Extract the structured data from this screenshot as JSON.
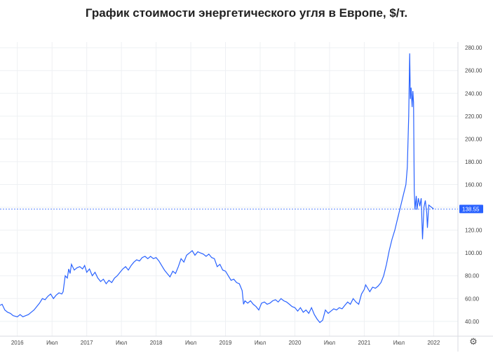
{
  "chart_data": {
    "type": "line",
    "title": "График стоимости энергетического угля в Европе, $/т.",
    "xlabel": "",
    "ylabel": "",
    "x_range": [
      2015.75,
      2022.35
    ],
    "ylim": [
      27,
      285
    ],
    "y_ticks": [
      40,
      60,
      80,
      100,
      120,
      140,
      160,
      180,
      200,
      220,
      240,
      260,
      280
    ],
    "y_tick_labels": [
      "40.00",
      "60.00",
      "80.00",
      "100.00",
      "120.00",
      "140.00",
      "160.00",
      "180.00",
      "200.00",
      "220.00",
      "240.00",
      "260.00",
      "280.00"
    ],
    "x_ticks": [
      {
        "x": 2016.0,
        "label": "2016"
      },
      {
        "x": 2016.5,
        "label": "Июл"
      },
      {
        "x": 2017.0,
        "label": "2017"
      },
      {
        "x": 2017.5,
        "label": "Июл"
      },
      {
        "x": 2018.0,
        "label": "2018"
      },
      {
        "x": 2018.5,
        "label": "Июл"
      },
      {
        "x": 2019.0,
        "label": "2019"
      },
      {
        "x": 2019.5,
        "label": "Июл"
      },
      {
        "x": 2020.0,
        "label": "2020"
      },
      {
        "x": 2020.5,
        "label": "Июл"
      },
      {
        "x": 2021.0,
        "label": "2021"
      },
      {
        "x": 2021.5,
        "label": "Июл"
      },
      {
        "x": 2022.0,
        "label": "2022"
      }
    ],
    "grid": true,
    "last_value": 138.55,
    "last_value_label": "138.55",
    "series": [
      {
        "color": "#2962ff",
        "points": [
          [
            2015.75,
            54
          ],
          [
            2015.78,
            55
          ],
          [
            2015.82,
            50
          ],
          [
            2015.86,
            48
          ],
          [
            2015.9,
            47
          ],
          [
            2015.94,
            45
          ],
          [
            2016.0,
            44
          ],
          [
            2016.04,
            46
          ],
          [
            2016.08,
            44
          ],
          [
            2016.12,
            45
          ],
          [
            2016.16,
            46
          ],
          [
            2016.2,
            48
          ],
          [
            2016.24,
            50
          ],
          [
            2016.28,
            53
          ],
          [
            2016.32,
            56
          ],
          [
            2016.36,
            60
          ],
          [
            2016.4,
            59
          ],
          [
            2016.44,
            62
          ],
          [
            2016.48,
            64
          ],
          [
            2016.52,
            60
          ],
          [
            2016.56,
            63
          ],
          [
            2016.6,
            65
          ],
          [
            2016.64,
            64
          ],
          [
            2016.66,
            66
          ],
          [
            2016.69,
            80
          ],
          [
            2016.72,
            78
          ],
          [
            2016.74,
            86
          ],
          [
            2016.76,
            82
          ],
          [
            2016.78,
            90
          ],
          [
            2016.82,
            85
          ],
          [
            2016.86,
            87
          ],
          [
            2016.9,
            88
          ],
          [
            2016.94,
            86
          ],
          [
            2016.97,
            89
          ],
          [
            2017.0,
            83
          ],
          [
            2017.04,
            86
          ],
          [
            2017.08,
            80
          ],
          [
            2017.12,
            83
          ],
          [
            2017.16,
            78
          ],
          [
            2017.2,
            75
          ],
          [
            2017.24,
            77
          ],
          [
            2017.28,
            73
          ],
          [
            2017.32,
            76
          ],
          [
            2017.36,
            74
          ],
          [
            2017.4,
            78
          ],
          [
            2017.44,
            80
          ],
          [
            2017.48,
            83
          ],
          [
            2017.52,
            86
          ],
          [
            2017.56,
            88
          ],
          [
            2017.6,
            85
          ],
          [
            2017.64,
            89
          ],
          [
            2017.68,
            92
          ],
          [
            2017.72,
            94
          ],
          [
            2017.76,
            93
          ],
          [
            2017.8,
            96
          ],
          [
            2017.84,
            97
          ],
          [
            2017.88,
            95
          ],
          [
            2017.92,
            97
          ],
          [
            2017.96,
            95
          ],
          [
            2018.0,
            96
          ],
          [
            2018.04,
            93
          ],
          [
            2018.08,
            89
          ],
          [
            2018.12,
            85
          ],
          [
            2018.16,
            82
          ],
          [
            2018.2,
            79
          ],
          [
            2018.24,
            84
          ],
          [
            2018.28,
            82
          ],
          [
            2018.32,
            88
          ],
          [
            2018.36,
            95
          ],
          [
            2018.4,
            92
          ],
          [
            2018.44,
            98
          ],
          [
            2018.48,
            100
          ],
          [
            2018.52,
            102
          ],
          [
            2018.56,
            98
          ],
          [
            2018.6,
            101
          ],
          [
            2018.64,
            100
          ],
          [
            2018.68,
            99
          ],
          [
            2018.72,
            97
          ],
          [
            2018.76,
            99
          ],
          [
            2018.8,
            96
          ],
          [
            2018.84,
            95
          ],
          [
            2018.88,
            88
          ],
          [
            2018.92,
            90
          ],
          [
            2018.96,
            85
          ],
          [
            2019.0,
            84
          ],
          [
            2019.04,
            80
          ],
          [
            2019.08,
            76
          ],
          [
            2019.12,
            77
          ],
          [
            2019.16,
            74
          ],
          [
            2019.2,
            73
          ],
          [
            2019.24,
            67
          ],
          [
            2019.26,
            55
          ],
          [
            2019.28,
            58
          ],
          [
            2019.32,
            56
          ],
          [
            2019.36,
            58
          ],
          [
            2019.4,
            55
          ],
          [
            2019.44,
            53
          ],
          [
            2019.48,
            50
          ],
          [
            2019.52,
            56
          ],
          [
            2019.56,
            57
          ],
          [
            2019.6,
            55
          ],
          [
            2019.64,
            56
          ],
          [
            2019.68,
            58
          ],
          [
            2019.72,
            59
          ],
          [
            2019.76,
            57
          ],
          [
            2019.8,
            60
          ],
          [
            2019.84,
            58
          ],
          [
            2019.88,
            57
          ],
          [
            2019.92,
            55
          ],
          [
            2019.96,
            53
          ],
          [
            2020.0,
            52
          ],
          [
            2020.04,
            49
          ],
          [
            2020.08,
            52
          ],
          [
            2020.12,
            48
          ],
          [
            2020.16,
            50
          ],
          [
            2020.2,
            47
          ],
          [
            2020.24,
            52
          ],
          [
            2020.28,
            46
          ],
          [
            2020.32,
            42
          ],
          [
            2020.36,
            39
          ],
          [
            2020.4,
            41
          ],
          [
            2020.44,
            50
          ],
          [
            2020.48,
            47
          ],
          [
            2020.52,
            49
          ],
          [
            2020.56,
            51
          ],
          [
            2020.6,
            50
          ],
          [
            2020.64,
            52
          ],
          [
            2020.68,
            51
          ],
          [
            2020.72,
            54
          ],
          [
            2020.76,
            57
          ],
          [
            2020.8,
            55
          ],
          [
            2020.84,
            60
          ],
          [
            2020.88,
            57
          ],
          [
            2020.92,
            55
          ],
          [
            2020.96,
            64
          ],
          [
            2021.0,
            68
          ],
          [
            2021.02,
            72
          ],
          [
            2021.04,
            70
          ],
          [
            2021.08,
            66
          ],
          [
            2021.12,
            70
          ],
          [
            2021.16,
            69
          ],
          [
            2021.2,
            71
          ],
          [
            2021.24,
            74
          ],
          [
            2021.28,
            80
          ],
          [
            2021.32,
            90
          ],
          [
            2021.36,
            102
          ],
          [
            2021.4,
            112
          ],
          [
            2021.44,
            120
          ],
          [
            2021.48,
            130
          ],
          [
            2021.52,
            140
          ],
          [
            2021.56,
            150
          ],
          [
            2021.6,
            160
          ],
          [
            2021.62,
            175
          ],
          [
            2021.64,
            220
          ],
          [
            2021.655,
            275
          ],
          [
            2021.665,
            235
          ],
          [
            2021.675,
            245
          ],
          [
            2021.69,
            228
          ],
          [
            2021.7,
            242
          ],
          [
            2021.71,
            232
          ],
          [
            2021.72,
            155
          ],
          [
            2021.73,
            138
          ],
          [
            2021.75,
            150
          ],
          [
            2021.76,
            138
          ],
          [
            2021.78,
            148
          ],
          [
            2021.8,
            141
          ],
          [
            2021.82,
            148
          ],
          [
            2021.84,
            112
          ],
          [
            2021.86,
            140
          ],
          [
            2021.88,
            146
          ],
          [
            2021.9,
            135
          ],
          [
            2021.91,
            122
          ],
          [
            2021.93,
            142
          ],
          [
            2022.0,
            138.55
          ]
        ]
      }
    ]
  }
}
